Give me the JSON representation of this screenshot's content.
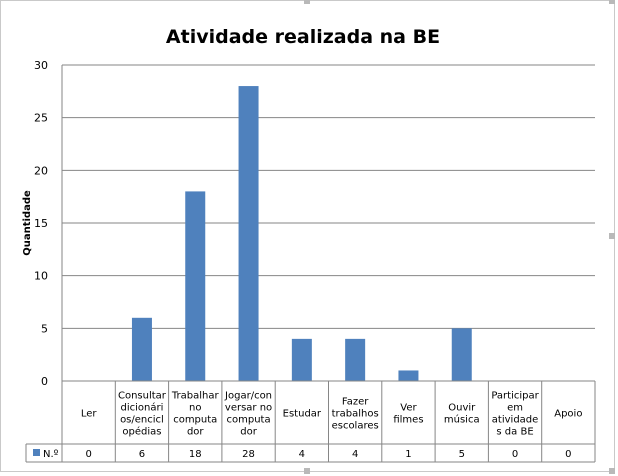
{
  "chart_data": {
    "type": "bar",
    "title": "Atividade realizada na BE",
    "ylabel": "Quantidade",
    "xlabel": "",
    "ylim": [
      0,
      30
    ],
    "yticks": [
      0,
      5,
      10,
      15,
      20,
      25,
      30
    ],
    "grid": true,
    "legend": "in-table-left",
    "categories": [
      [
        "Ler"
      ],
      [
        "Consultar",
        "dicionári",
        "os/encicl",
        "opédias"
      ],
      [
        "Trabalhar",
        "no",
        "computa",
        "dor"
      ],
      [
        "Jogar/con",
        "versar no",
        "computa",
        "dor"
      ],
      [
        "Estudar"
      ],
      [
        "Fazer",
        "trabalhos",
        "escolares"
      ],
      [
        "Ver",
        "filmes"
      ],
      [
        "Ouvir",
        "música"
      ],
      [
        "Participar",
        "em",
        "atividade",
        "s da BE"
      ],
      [
        "Apoio"
      ]
    ],
    "series": [
      {
        "name": "N.º",
        "color": "#4f81bd",
        "values": [
          0,
          6,
          18,
          28,
          4,
          4,
          1,
          5,
          0,
          0
        ]
      }
    ]
  }
}
